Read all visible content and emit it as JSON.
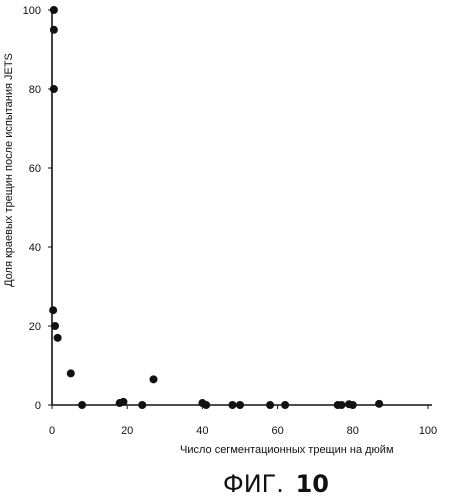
{
  "chart_data": {
    "type": "scatter",
    "title": "",
    "xlabel": "Число сегментационных трещин на дюйм",
    "ylabel": "Доля краевых трещин после испытания JETS",
    "xlim": [
      0,
      100
    ],
    "ylim": [
      0,
      100
    ],
    "xticks": [
      "0",
      "20",
      "40",
      "60",
      "80",
      "100"
    ],
    "yticks": [
      "0",
      "20",
      "40",
      "60",
      "80",
      "100"
    ],
    "grid": false,
    "legend": "none",
    "marker_color": "#111111",
    "series": [
      {
        "points": [
          [
            0.5,
            100
          ],
          [
            0.5,
            95
          ],
          [
            0.5,
            80
          ],
          [
            0.3,
            24
          ],
          [
            0.8,
            20
          ],
          [
            1.5,
            17
          ],
          [
            5,
            8
          ],
          [
            8,
            0
          ],
          [
            18,
            0.5
          ],
          [
            19,
            0.8
          ],
          [
            24,
            0
          ],
          [
            27,
            6.5
          ],
          [
            40,
            0.5
          ],
          [
            41,
            0
          ],
          [
            48,
            0
          ],
          [
            50,
            0
          ],
          [
            58,
            0
          ],
          [
            62,
            0
          ],
          [
            76,
            0
          ],
          [
            77,
            0
          ],
          [
            79,
            0.2
          ],
          [
            80,
            0
          ],
          [
            87,
            0.3
          ]
        ]
      }
    ]
  },
  "figure_caption": {
    "prefix": "ФИГ.",
    "number": "10"
  }
}
